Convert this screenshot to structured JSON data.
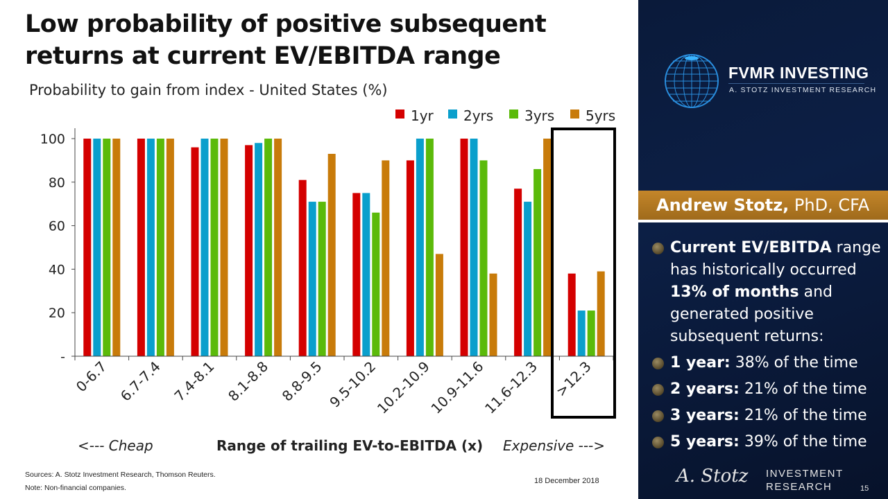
{
  "slide": {
    "title": "Low probability of positive subsequent returns at current EV/EBITDA range",
    "page_number": "15",
    "date": "18 December  2018",
    "sources": "Sources: A. Stotz Investment Research, Thomson Reuters.",
    "note": "Note: Non-financial companies."
  },
  "sidebar": {
    "logo_title": "FVMR INVESTING",
    "logo_subtitle": "A. STOTZ INVESTMENT RESEARCH",
    "author_name": "Andrew Stotz,",
    "author_credentials": " PhD, CFA",
    "bullets": [
      {
        "bold": "Current EV/EBITDA",
        "text": " range has historically occurred "
      },
      {
        "bold": "1 year:",
        "text": " 38% of the time"
      },
      {
        "bold": "2 years:",
        "text": " 21% of the time"
      },
      {
        "bold": "3 years:",
        "text": " 21% of the time"
      },
      {
        "bold": "5 years:",
        "text": " 39% of the time"
      }
    ],
    "bullet0_bold2": "13% of months",
    "bullet0_tail": " and generated positive subsequent returns:",
    "signature": "A. Stotz",
    "brand_line1": "INVESTMENT",
    "brand_line2": "RESEARCH"
  },
  "chart_data": {
    "type": "bar",
    "title": "Probability to gain from index - United States (%)",
    "xlabel": "Range of trailing EV-to-EBITDA (x)",
    "xlabel_left": "<--- Cheap",
    "xlabel_right": "Expensive --->",
    "ylabel": "",
    "ylim": [
      0,
      100
    ],
    "yticks": [
      0,
      20,
      40,
      60,
      80,
      100
    ],
    "ytick_labels": [
      "-",
      "20",
      "40",
      "60",
      "80",
      "100"
    ],
    "legend_position": "top-right",
    "highlight_category": ">12.3",
    "categories": [
      "0-6.7",
      "6.7-7.4",
      "7.4-8.1",
      "8.1-8.8",
      "8.8-9.5",
      "9.5-10.2",
      "10.2-10.9",
      "10.9-11.6",
      "11.6-12.3",
      ">12.3"
    ],
    "series": [
      {
        "name": "1yr",
        "color": "#d40000",
        "values": [
          100,
          100,
          96,
          97,
          81,
          75,
          90,
          100,
          77,
          38
        ]
      },
      {
        "name": "2yrs",
        "color": "#0a9fcc",
        "values": [
          100,
          100,
          100,
          98,
          71,
          75,
          100,
          100,
          71,
          21
        ]
      },
      {
        "name": "3yrs",
        "color": "#5bba0a",
        "values": [
          100,
          100,
          100,
          100,
          71,
          66,
          100,
          90,
          86,
          21
        ]
      },
      {
        "name": "5yrs",
        "color": "#c87b0a",
        "values": [
          100,
          100,
          100,
          100,
          93,
          90,
          47,
          38,
          100,
          39
        ]
      }
    ]
  }
}
